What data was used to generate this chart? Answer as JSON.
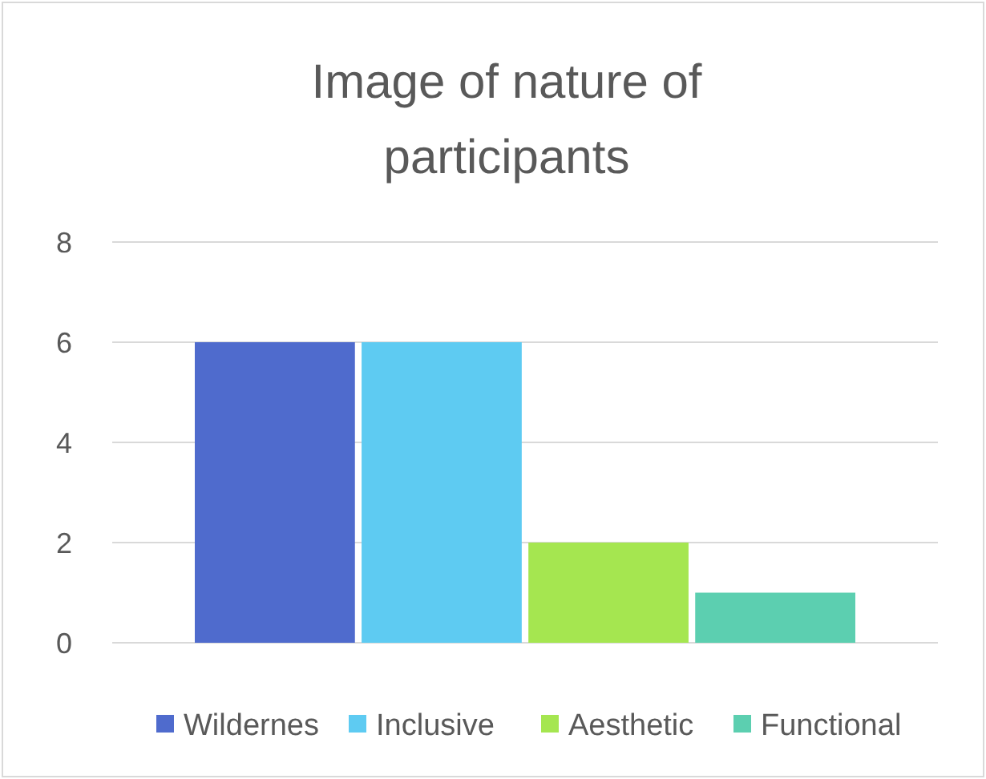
{
  "chart_data": {
    "type": "bar",
    "title": "Image of nature of participants",
    "categories": [
      null
    ],
    "series": [
      {
        "name": "Wildernes",
        "color": "#4f6bcd",
        "values": [
          6
        ]
      },
      {
        "name": "Inclusive",
        "color": "#5ecbf2",
        "values": [
          6
        ]
      },
      {
        "name": "Aesthetic",
        "color": "#a5e650",
        "values": [
          2
        ]
      },
      {
        "name": "Functional",
        "color": "#5ccfb0",
        "values": [
          1
        ]
      }
    ],
    "ylim": [
      0,
      8
    ],
    "yticks": [
      0,
      2,
      4,
      6,
      8
    ],
    "grid": "y",
    "legend": "bottom"
  }
}
